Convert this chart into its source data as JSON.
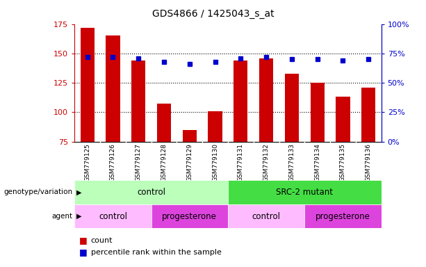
{
  "title": "GDS4866 / 1425043_s_at",
  "samples": [
    "GSM779125",
    "GSM779126",
    "GSM779127",
    "GSM779128",
    "GSM779129",
    "GSM779130",
    "GSM779131",
    "GSM779132",
    "GSM779133",
    "GSM779134",
    "GSM779135",
    "GSM779136"
  ],
  "counts": [
    172,
    165,
    144,
    107,
    85,
    101,
    144,
    146,
    133,
    125,
    113,
    121
  ],
  "percentile_ranks": [
    72,
    72,
    71,
    68,
    66,
    68,
    71,
    72,
    70,
    70,
    69,
    70
  ],
  "ylim_left": [
    75,
    175
  ],
  "ylim_right": [
    0,
    100
  ],
  "bar_color": "#cc0000",
  "dot_color": "#0000cc",
  "background_fig": "#ffffff",
  "background_plot": "#ffffff",
  "genotype_groups": [
    {
      "label": "control",
      "start": 0,
      "end": 6,
      "color": "#bbffbb"
    },
    {
      "label": "SRC-2 mutant",
      "start": 6,
      "end": 12,
      "color": "#44dd44"
    }
  ],
  "agent_groups": [
    {
      "label": "control",
      "start": 0,
      "end": 3,
      "color": "#ffbbff"
    },
    {
      "label": "progesterone",
      "start": 3,
      "end": 6,
      "color": "#dd44dd"
    },
    {
      "label": "control",
      "start": 6,
      "end": 9,
      "color": "#ffbbff"
    },
    {
      "label": "progesterone",
      "start": 9,
      "end": 12,
      "color": "#dd44dd"
    }
  ],
  "yticks_left": [
    75,
    100,
    125,
    150,
    175
  ],
  "yticks_right": [
    0,
    25,
    50,
    75,
    100
  ],
  "ytick_labels_right": [
    "0%",
    "25%",
    "50%",
    "75%",
    "100%"
  ]
}
